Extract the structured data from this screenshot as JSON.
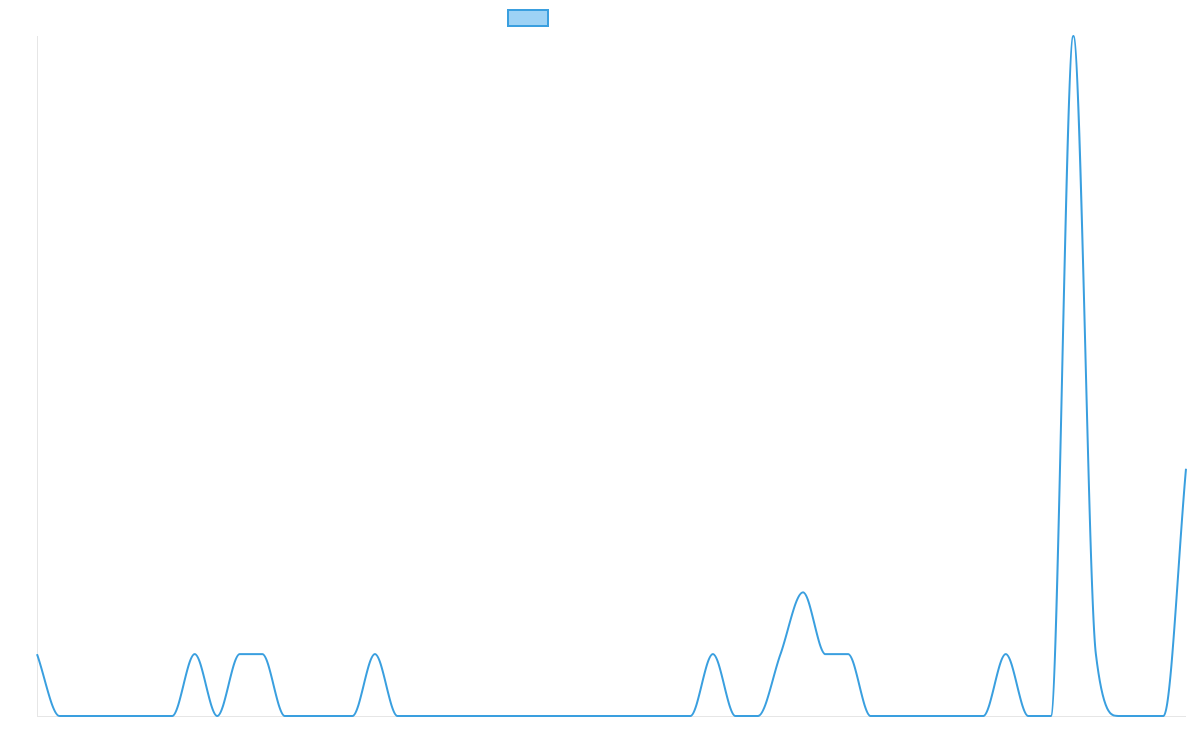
{
  "chart_data": {
    "type": "line",
    "title": "",
    "xlabel": "",
    "ylabel": "",
    "legend": {
      "placement": "top-center",
      "swatch_fill": "#9dd2f5",
      "swatch_stroke": "#3a9fdf",
      "label": ""
    },
    "line_color": "#3a9fdf",
    "axis_color": "#e6e6e6",
    "grid": false,
    "xlim": [
      0,
      51
    ],
    "ylim": [
      0,
      11
    ],
    "x": [
      0,
      1,
      2,
      3,
      4,
      5,
      6,
      7,
      8,
      9,
      10,
      11,
      12,
      13,
      14,
      15,
      16,
      17,
      18,
      19,
      20,
      21,
      22,
      23,
      24,
      25,
      26,
      27,
      28,
      29,
      30,
      31,
      32,
      33,
      34,
      35,
      36,
      37,
      38,
      39,
      40,
      41,
      42,
      43,
      44,
      45,
      46,
      47,
      48,
      49,
      50,
      51
    ],
    "series": [
      {
        "values": [
          1,
          0,
          0,
          0,
          0,
          0,
          0,
          1,
          0,
          1,
          1,
          0,
          0,
          0,
          0,
          1,
          0,
          0,
          0,
          0,
          0,
          0,
          0,
          0,
          0,
          0,
          0,
          0,
          0,
          0,
          1,
          0,
          0,
          1,
          2,
          1,
          1,
          0,
          0,
          0,
          0,
          0,
          0,
          1,
          0,
          0,
          11,
          1,
          0,
          0,
          0,
          4
        ]
      }
    ]
  }
}
